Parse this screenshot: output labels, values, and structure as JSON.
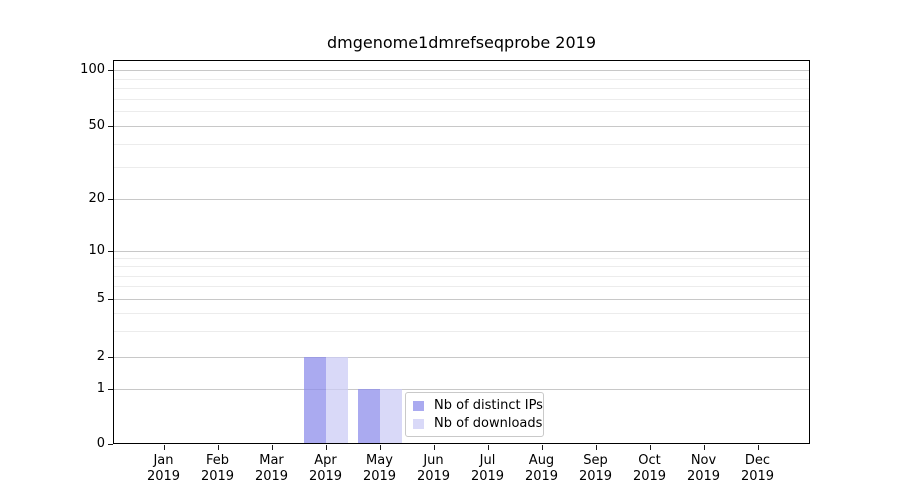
{
  "page": {
    "title": "dmgenome1dmrefseqprobe 2019"
  },
  "chart_data": {
    "type": "bar",
    "title": "dmgenome1dmrefseqprobe 2019",
    "categories": [
      "Jan 2019",
      "Feb 2019",
      "Mar 2019",
      "Apr 2019",
      "May 2019",
      "Jun 2019",
      "Jul 2019",
      "Aug 2019",
      "Sep 2019",
      "Oct 2019",
      "Nov 2019",
      "Dec 2019"
    ],
    "x_tick_line1": [
      "Jan",
      "Feb",
      "Mar",
      "Apr",
      "May",
      "Jun",
      "Jul",
      "Aug",
      "Sep",
      "Oct",
      "Nov",
      "Dec"
    ],
    "x_tick_line2": "2019",
    "series": [
      {
        "name": "Nb of distinct IPs",
        "color": "#aaaaf0",
        "fill_rgba": "rgba(142,142,235,0.75)",
        "values": [
          0,
          0,
          0,
          2,
          1,
          0,
          0,
          0,
          0,
          0,
          0,
          0
        ]
      },
      {
        "name": "Nb of downloads",
        "color": "#d9d9f8",
        "fill_rgba": "rgba(204,204,246,0.75)",
        "values": [
          0,
          0,
          0,
          2,
          1,
          0,
          0,
          0,
          0,
          0,
          0,
          0
        ]
      }
    ],
    "y_axis": {
      "scale": "log-like (linear 0-1, log above)",
      "major_ticks": [
        0,
        1,
        2,
        5,
        10,
        20,
        50,
        100
      ],
      "minor_gridline_values": [
        3,
        4,
        6,
        7,
        8,
        9,
        30,
        40,
        60,
        70,
        80,
        90
      ],
      "ylim": [
        0,
        114
      ]
    },
    "grid": "on",
    "legend": {
      "position": "lower center-left, overlapping May bars",
      "entries": [
        "Nb of distinct IPs",
        "Nb of downloads"
      ]
    },
    "colors": {
      "bar_distinct_ips": "#aaaaf0",
      "bar_downloads": "#d9d9f8",
      "major_gridline": "#c8c8c8",
      "minor_gridline": "#ececec",
      "axis": "#000000",
      "legend_border": "#c9c9c9"
    }
  }
}
